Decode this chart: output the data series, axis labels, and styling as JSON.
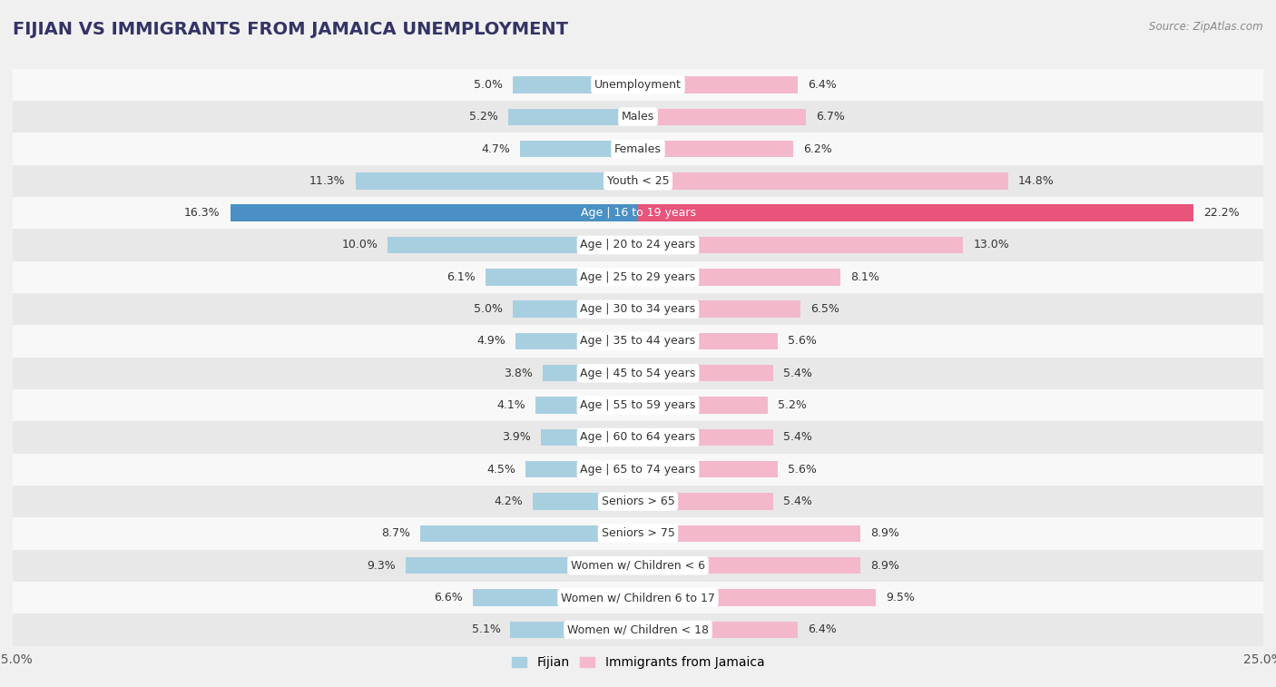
{
  "title": "FIJIAN VS IMMIGRANTS FROM JAMAICA UNEMPLOYMENT",
  "source": "Source: ZipAtlas.com",
  "categories": [
    "Unemployment",
    "Males",
    "Females",
    "Youth < 25",
    "Age | 16 to 19 years",
    "Age | 20 to 24 years",
    "Age | 25 to 29 years",
    "Age | 30 to 34 years",
    "Age | 35 to 44 years",
    "Age | 45 to 54 years",
    "Age | 55 to 59 years",
    "Age | 60 to 64 years",
    "Age | 65 to 74 years",
    "Seniors > 65",
    "Seniors > 75",
    "Women w/ Children < 6",
    "Women w/ Children 6 to 17",
    "Women w/ Children < 18"
  ],
  "fijian": [
    5.0,
    5.2,
    4.7,
    11.3,
    16.3,
    10.0,
    6.1,
    5.0,
    4.9,
    3.8,
    4.1,
    3.9,
    4.5,
    4.2,
    8.7,
    9.3,
    6.6,
    5.1
  ],
  "jamaica": [
    6.4,
    6.7,
    6.2,
    14.8,
    22.2,
    13.0,
    8.1,
    6.5,
    5.6,
    5.4,
    5.2,
    5.4,
    5.6,
    5.4,
    8.9,
    8.9,
    9.5,
    6.4
  ],
  "fijian_color": "#a8cfe0",
  "jamaica_color": "#f4b8cb",
  "highlight_fijian_color": "#4a90c4",
  "highlight_jamaica_color": "#e8547a",
  "x_max": 25.0,
  "background_color": "#f0f0f0",
  "row_light": "#f8f8f8",
  "row_dark": "#e8e8e8",
  "label_fontsize": 9.0,
  "title_fontsize": 14,
  "source_fontsize": 8.5,
  "legend_fontsize": 10
}
